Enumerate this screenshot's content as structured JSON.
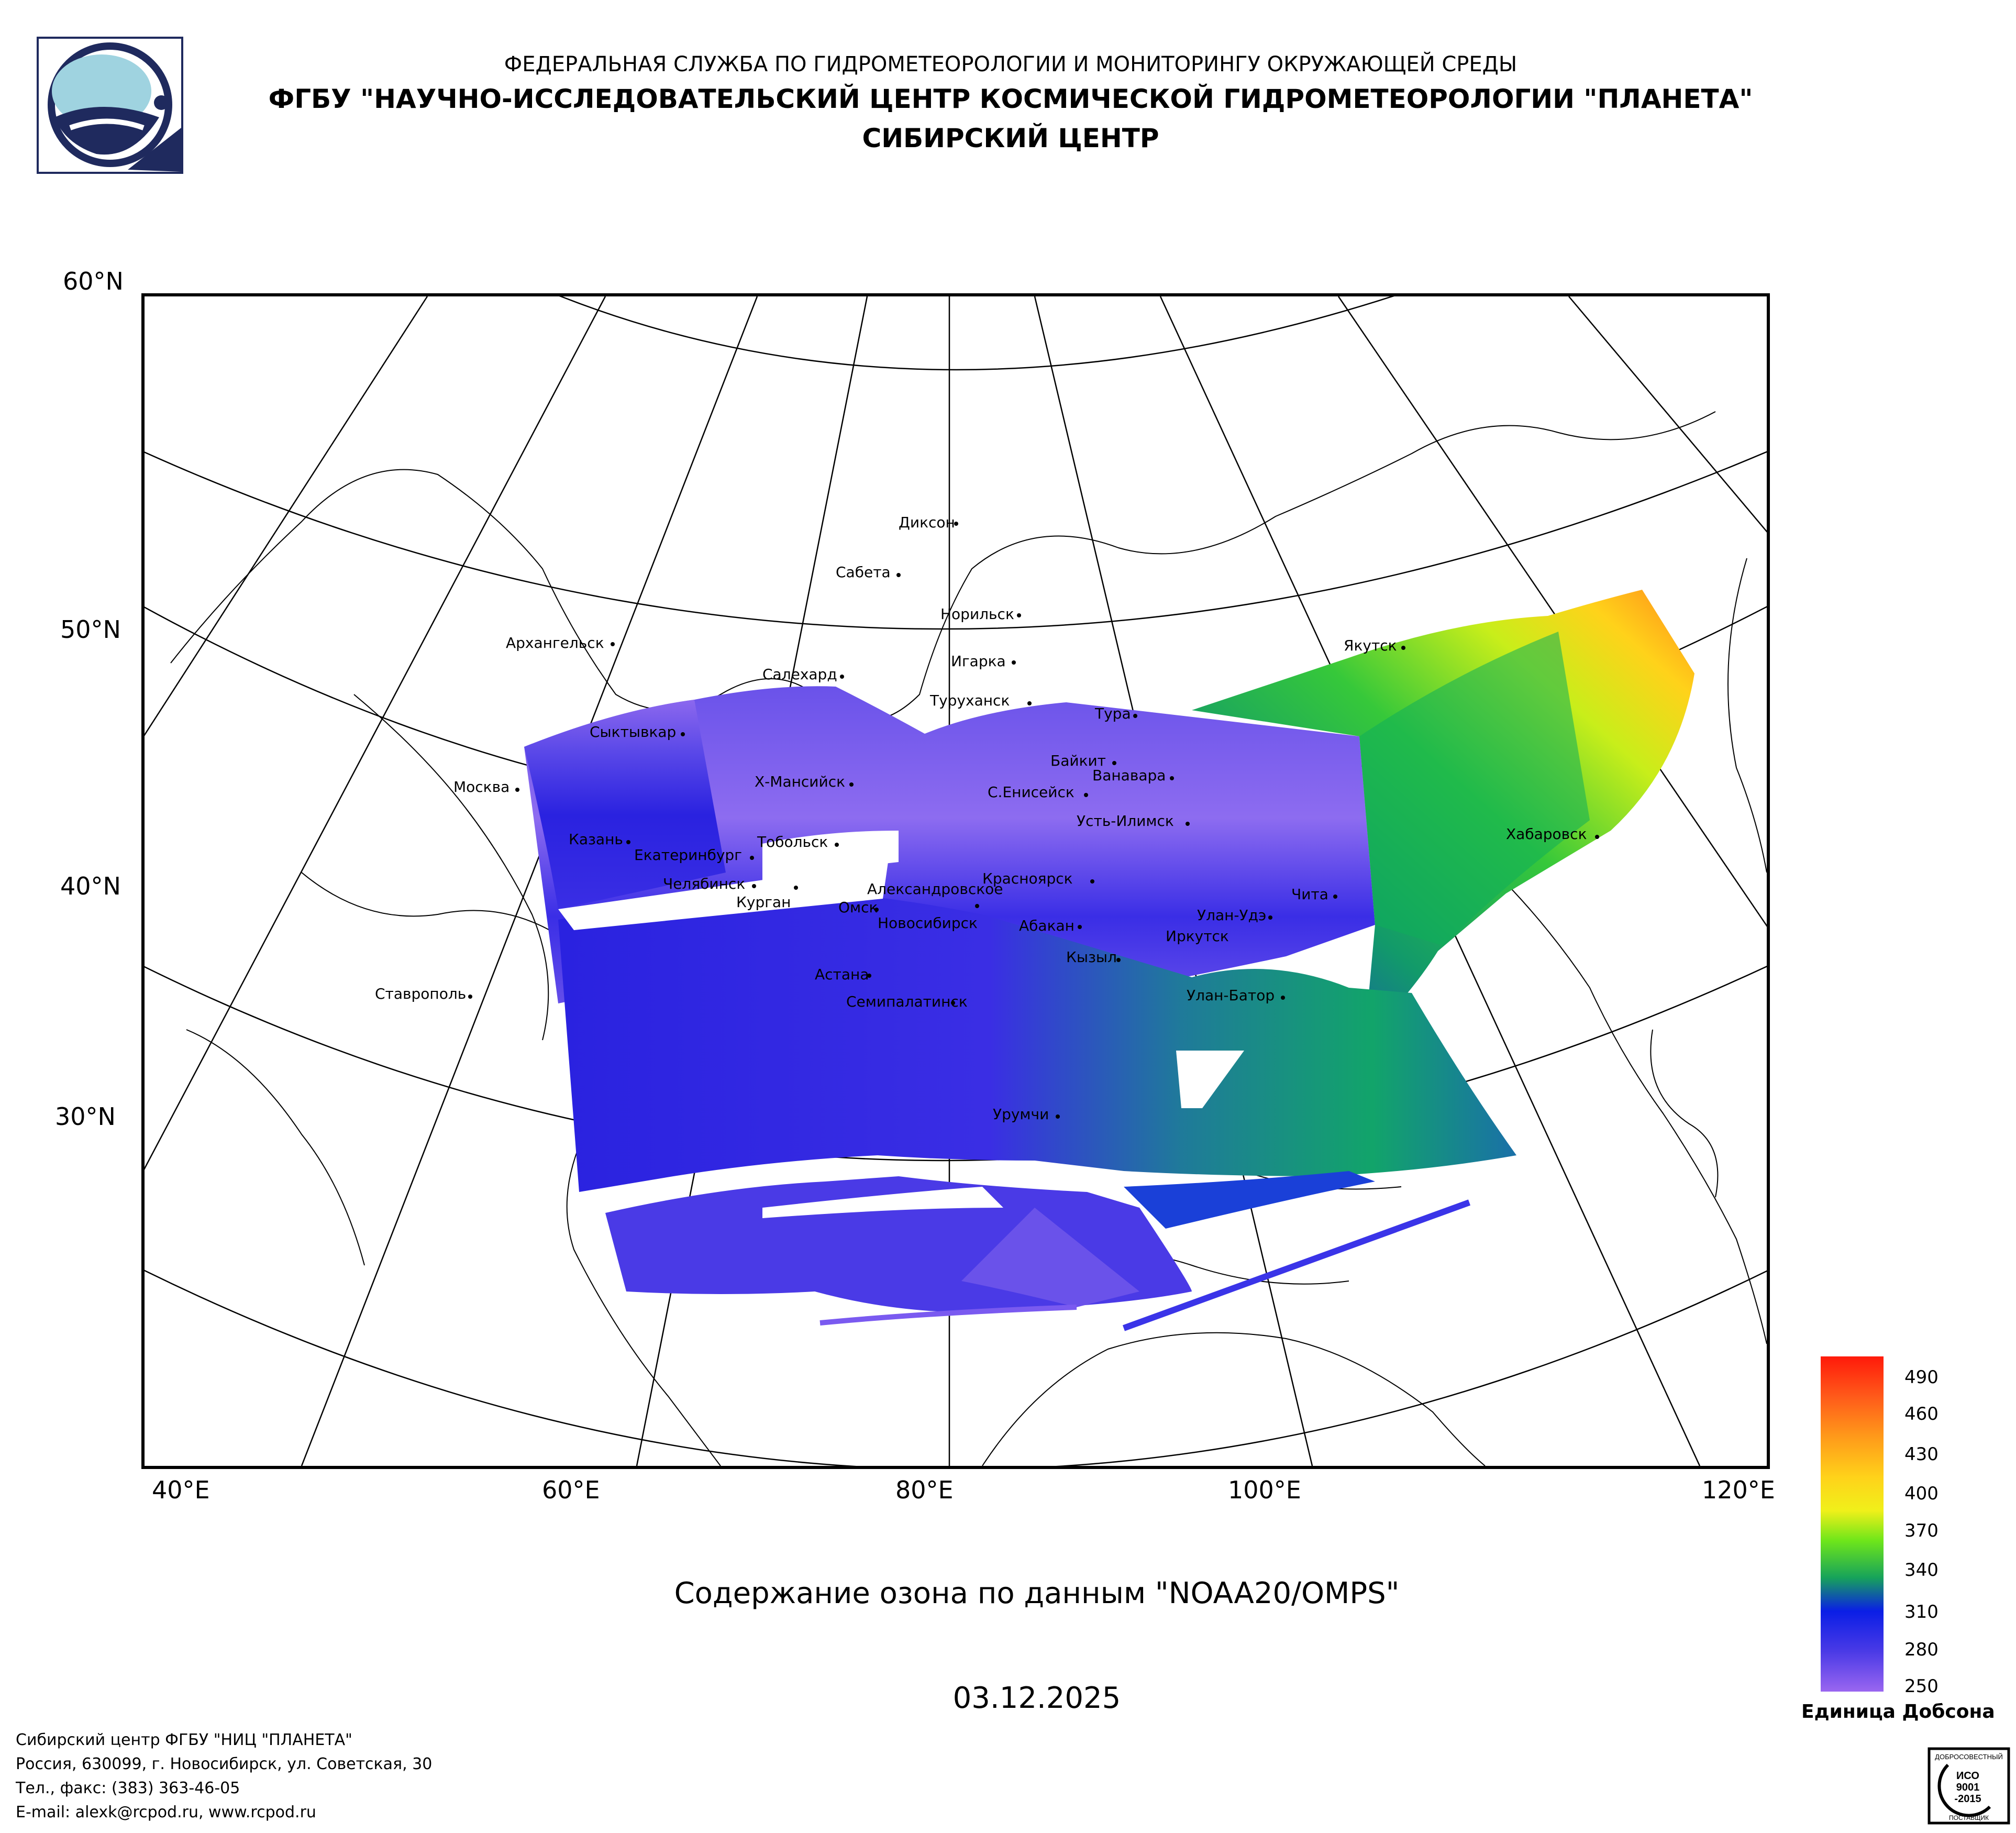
{
  "header": {
    "agency": "ФЕДЕРАЛЬНАЯ СЛУЖБА ПО ГИДРОМЕТЕОРОЛОГИИ И МОНИТОРИНГУ ОКРУЖАЮЩЕЙ СРЕДЫ",
    "institute": "ФГБУ \"НАУЧНО-ИССЛЕДОВАТЕЛЬСКИЙ ЦЕНТР КОСМИЧЕСКОЙ ГИДРОМЕТЕОРОЛОГИИ \"ПЛАНЕТА\"",
    "center": "СИБИРСКИЙ ЦЕНТР"
  },
  "map": {
    "latitude_labels": [
      "60°N",
      "50°N",
      "40°N",
      "30°N"
    ],
    "longitude_labels": [
      "40°E",
      "60°E",
      "80°E",
      "100°E",
      "120°E"
    ],
    "cities": [
      "Диксон",
      "Сабета",
      "Норильск",
      "Архангельск",
      "Игарка",
      "Салехард",
      "Туруханск",
      "Тура",
      "Якутск",
      "Сыктывкар",
      "Байкит",
      "Ванавара",
      "Москва",
      "Х-Мансийск",
      "С.Енисейск",
      "Усть-Илимск",
      "Хабаровск",
      "Казань",
      "Тобольск",
      "Екатеринбург",
      "Челябинск",
      "Красноярск",
      "Александровское",
      "Чита",
      "Курган",
      "Омск",
      "Улан-Удэ",
      "Новосибирск",
      "Абакан",
      "Иркутск",
      "Кызыл",
      "Астана",
      "Ставрополь",
      "Семипалатинск",
      "Улан-Батор",
      "Урумчи"
    ]
  },
  "caption": "Содержание озона по данным \"NOAA20/OMPS\"",
  "date": "03.12.2025",
  "color_scale": {
    "labels": [
      "490",
      "460",
      "430",
      "400",
      "370",
      "340",
      "310",
      "280",
      "250"
    ],
    "unit": "Единица Добсона",
    "colors": [
      "#ff1a0a",
      "#ff7a1a",
      "#ffc21a",
      "#f0f01a",
      "#6ee61a",
      "#17a35a",
      "#0a1ee6",
      "#4a3ae6",
      "#9a66f0"
    ]
  },
  "footer": {
    "line1": "Сибирский центр ФГБУ \"НИЦ \"ПЛАНЕТА\"",
    "line2": "Россия, 630099, г. Новосибирск, ул. Советская, 30",
    "line3": "Тел., факс: (383) 363-46-05",
    "line4": "E-mail: alexk@rcpod.ru, www.rcpod.ru"
  },
  "iso_stamp": {
    "top": "ДОБРОСОВЕСТНЫЙ",
    "l1": "ИСО",
    "l2": "9001",
    "l3": "-2015",
    "bottom": "ПОСТАВЩИК"
  }
}
